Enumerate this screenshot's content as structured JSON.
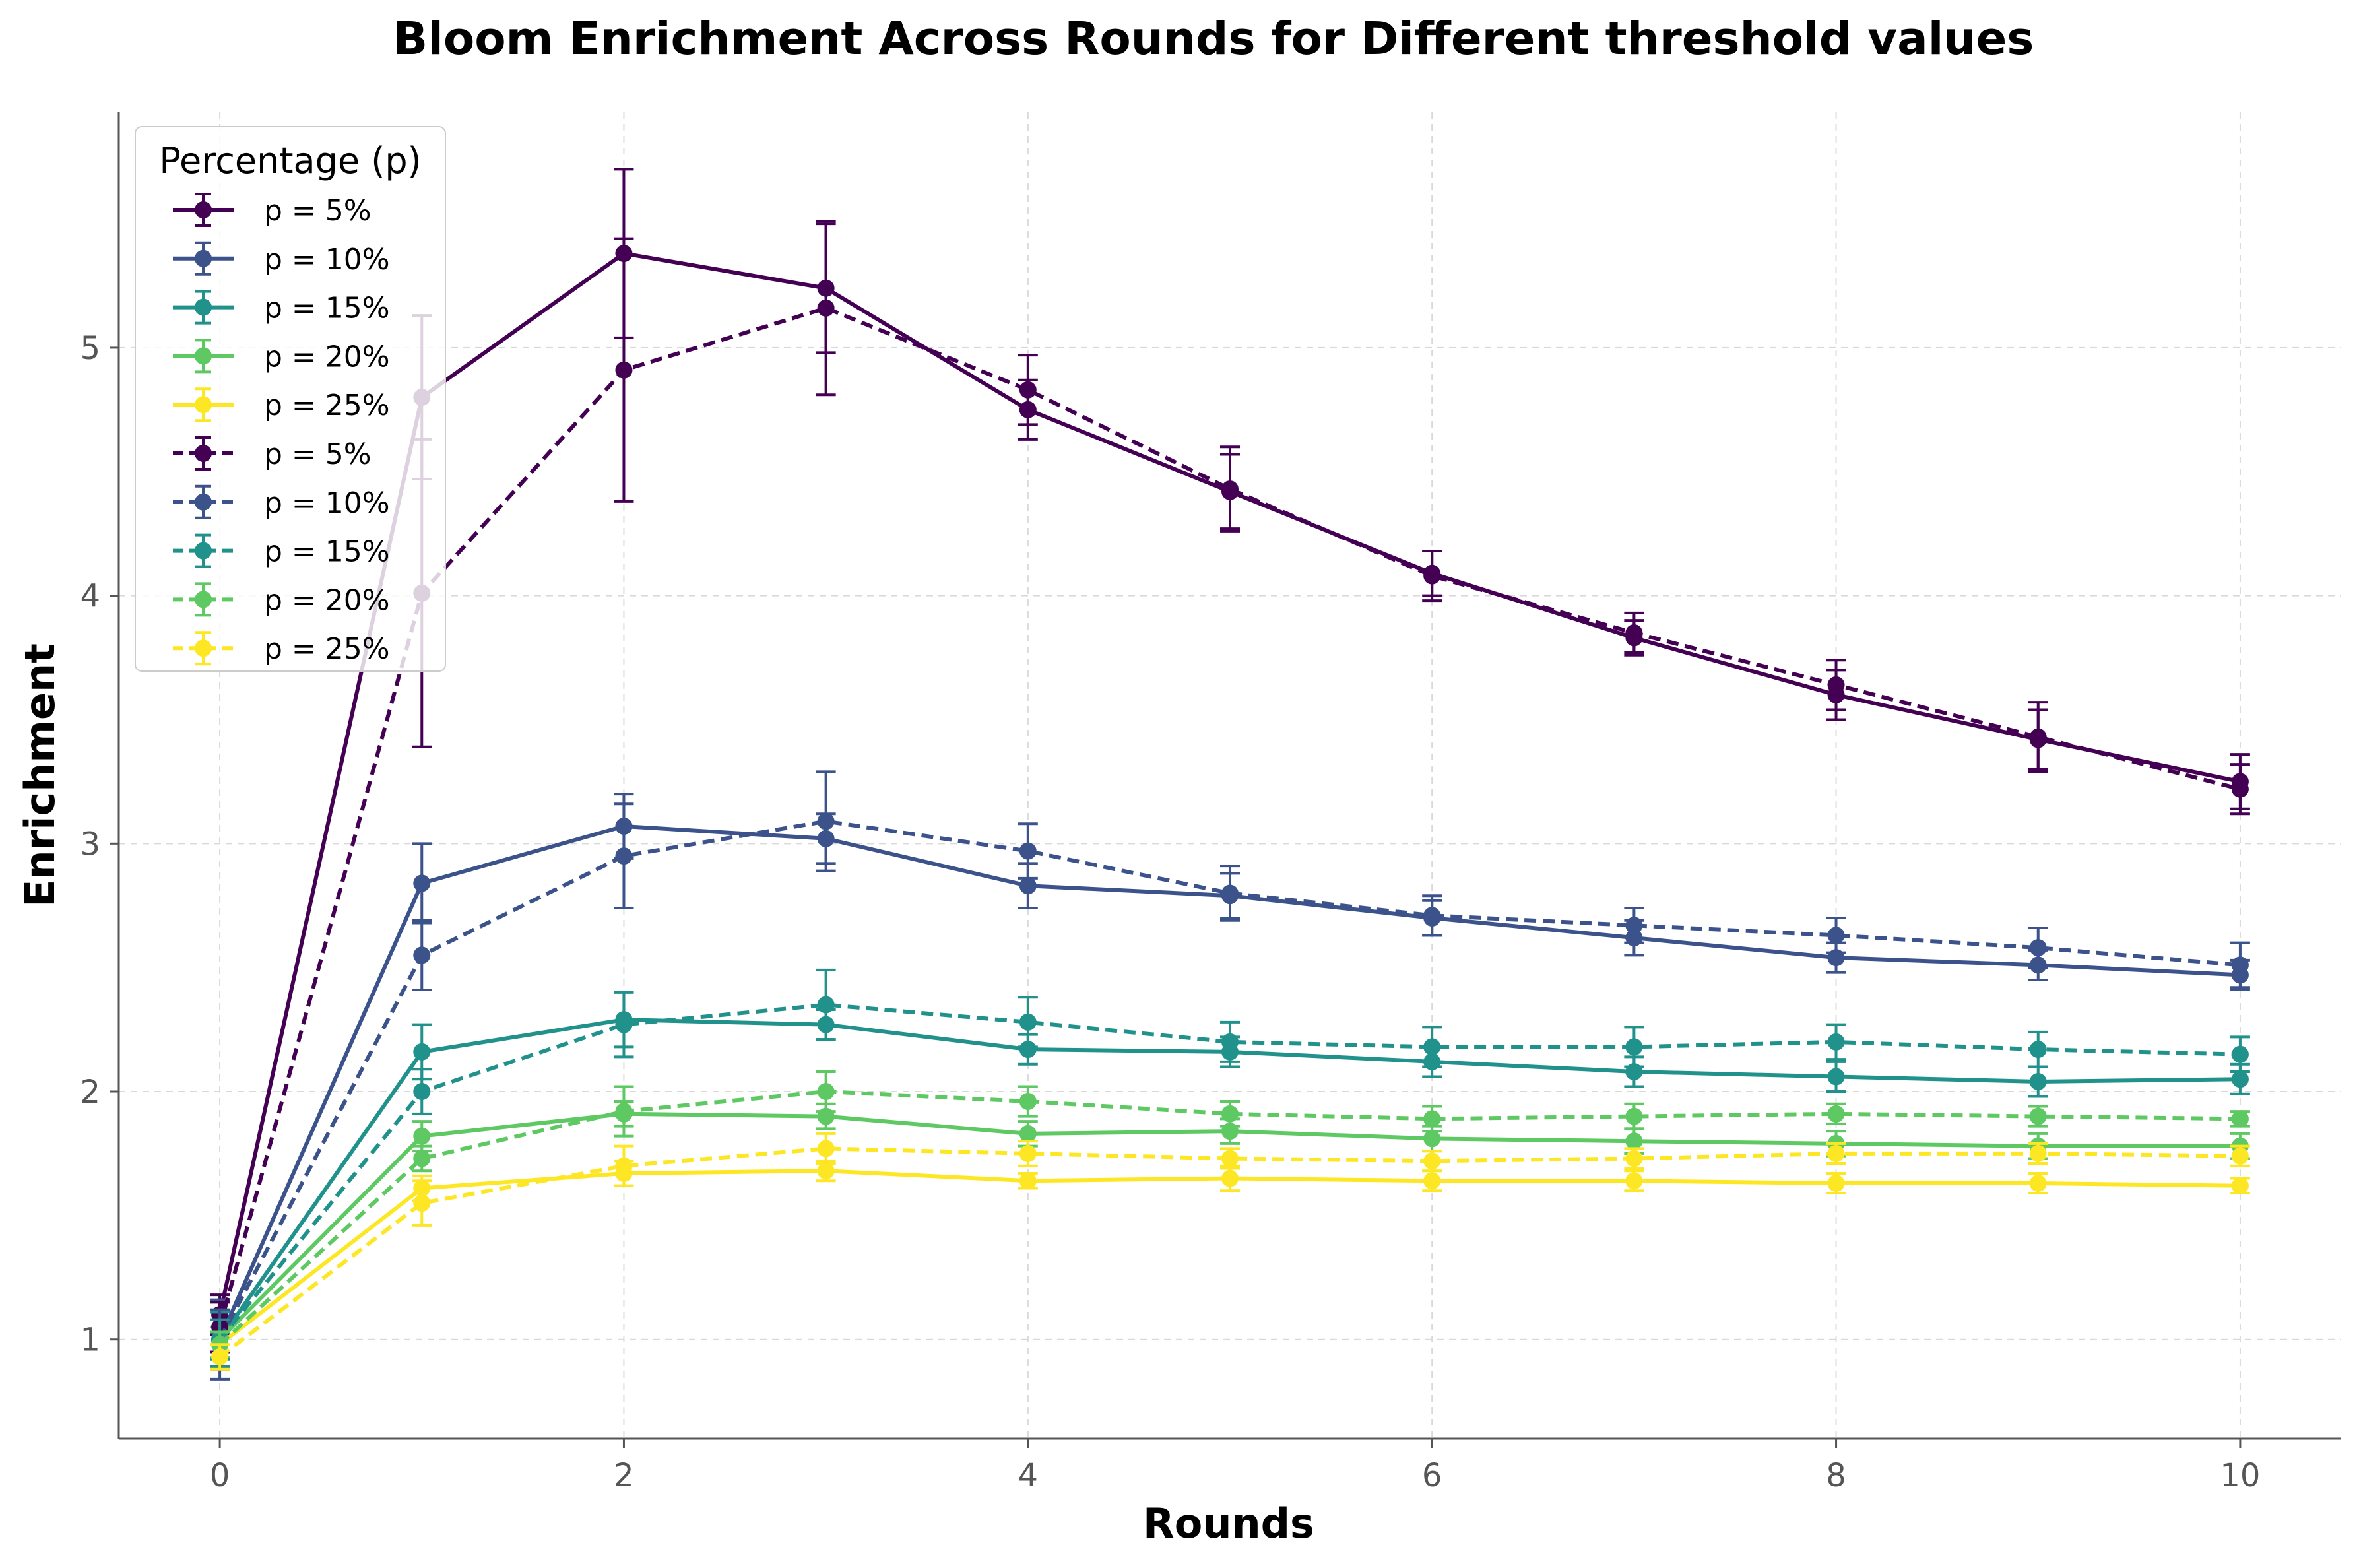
{
  "chart_data": {
    "type": "line",
    "title": "Bloom Enrichment Across Rounds for Different threshold values",
    "xlabel": "Rounds",
    "ylabel": "Enrichment",
    "xlim": [
      -0.5,
      10.5
    ],
    "ylim": [
      0.6,
      5.95
    ],
    "xticks": [
      0,
      2,
      4,
      6,
      8,
      10
    ],
    "xtick_labels": [
      "0",
      "2",
      "4",
      "6",
      "8",
      "10"
    ],
    "yticks": [
      1,
      2,
      3,
      4,
      5
    ],
    "ytick_labels": [
      "1",
      "2",
      "3",
      "4",
      "5"
    ],
    "grid": true,
    "legend": {
      "title": "Percentage (p)",
      "position": "top-left"
    },
    "x": [
      0,
      1,
      2,
      3,
      4,
      5,
      6,
      7,
      8,
      9,
      10
    ],
    "series": [
      {
        "name": "p = 5%",
        "color": "#440154",
        "dash": "solid",
        "values": [
          1.1,
          4.8,
          5.38,
          5.24,
          4.75,
          4.42,
          4.09,
          3.83,
          3.6,
          3.42,
          3.25
        ],
        "errors": [
          0.08,
          0.33,
          0.34,
          0.26,
          0.12,
          0.15,
          0.09,
          0.07,
          0.1,
          0.12,
          0.11
        ]
      },
      {
        "name": "p = 10%",
        "color": "#3b528b",
        "dash": "solid",
        "values": [
          1.0,
          2.84,
          3.07,
          3.02,
          2.83,
          2.79,
          2.7,
          2.62,
          2.54,
          2.51,
          2.47
        ],
        "errors": [
          0.16,
          0.16,
          0.13,
          0.1,
          0.09,
          0.09,
          0.07,
          0.07,
          0.06,
          0.06,
          0.06
        ]
      },
      {
        "name": "p = 15%",
        "color": "#21918c",
        "dash": "solid",
        "values": [
          1.0,
          2.16,
          2.29,
          2.27,
          2.17,
          2.16,
          2.12,
          2.08,
          2.06,
          2.04,
          2.05
        ],
        "errors": [
          0.11,
          0.11,
          0.11,
          0.06,
          0.06,
          0.06,
          0.06,
          0.06,
          0.06,
          0.06,
          0.06
        ]
      },
      {
        "name": "p = 20%",
        "color": "#5ec962",
        "dash": "solid",
        "values": [
          1.0,
          1.82,
          1.91,
          1.9,
          1.83,
          1.84,
          1.81,
          1.8,
          1.79,
          1.78,
          1.78
        ],
        "errors": [
          0.05,
          0.06,
          0.05,
          0.05,
          0.05,
          0.05,
          0.05,
          0.05,
          0.05,
          0.05,
          0.05
        ]
      },
      {
        "name": "p = 25%",
        "color": "#fde725",
        "dash": "solid",
        "values": [
          0.98,
          1.61,
          1.67,
          1.68,
          1.64,
          1.65,
          1.64,
          1.64,
          1.63,
          1.63,
          1.62
        ],
        "errors": [
          0.05,
          0.05,
          0.05,
          0.04,
          0.03,
          0.05,
          0.04,
          0.04,
          0.04,
          0.04,
          0.03
        ]
      },
      {
        "name": "p = 5%",
        "color": "#440154",
        "dash": "dashed",
        "values": [
          1.05,
          4.01,
          4.91,
          5.16,
          4.83,
          4.43,
          4.08,
          3.85,
          3.64,
          3.43,
          3.22
        ],
        "errors": [
          0.1,
          0.62,
          0.53,
          0.35,
          0.14,
          0.17,
          0.1,
          0.08,
          0.1,
          0.14,
          0.1
        ]
      },
      {
        "name": "p = 10%",
        "color": "#3b528b",
        "dash": "dashed",
        "values": [
          1.0,
          2.55,
          2.95,
          3.09,
          2.97,
          2.8,
          2.71,
          2.67,
          2.63,
          2.58,
          2.51
        ],
        "errors": [
          0.12,
          0.14,
          0.21,
          0.2,
          0.11,
          0.11,
          0.08,
          0.07,
          0.07,
          0.08,
          0.09
        ]
      },
      {
        "name": "p = 15%",
        "color": "#21918c",
        "dash": "dashed",
        "values": [
          1.0,
          2.0,
          2.27,
          2.35,
          2.28,
          2.2,
          2.18,
          2.18,
          2.2,
          2.17,
          2.15
        ],
        "errors": [
          0.08,
          0.09,
          0.13,
          0.14,
          0.1,
          0.08,
          0.08,
          0.08,
          0.07,
          0.07,
          0.07
        ]
      },
      {
        "name": "p = 20%",
        "color": "#5ec962",
        "dash": "dashed",
        "values": [
          0.98,
          1.73,
          1.92,
          2.0,
          1.96,
          1.91,
          1.89,
          1.9,
          1.91,
          1.9,
          1.89
        ],
        "errors": [
          0.05,
          0.05,
          0.1,
          0.08,
          0.06,
          0.05,
          0.05,
          0.05,
          0.04,
          0.04,
          0.03
        ]
      },
      {
        "name": "p = 25%",
        "color": "#fde725",
        "dash": "dashed",
        "values": [
          0.93,
          1.55,
          1.7,
          1.77,
          1.75,
          1.73,
          1.72,
          1.73,
          1.75,
          1.75,
          1.74
        ],
        "errors": [
          0.05,
          0.09,
          0.08,
          0.06,
          0.05,
          0.04,
          0.04,
          0.04,
          0.04,
          0.04,
          0.04
        ]
      }
    ]
  }
}
